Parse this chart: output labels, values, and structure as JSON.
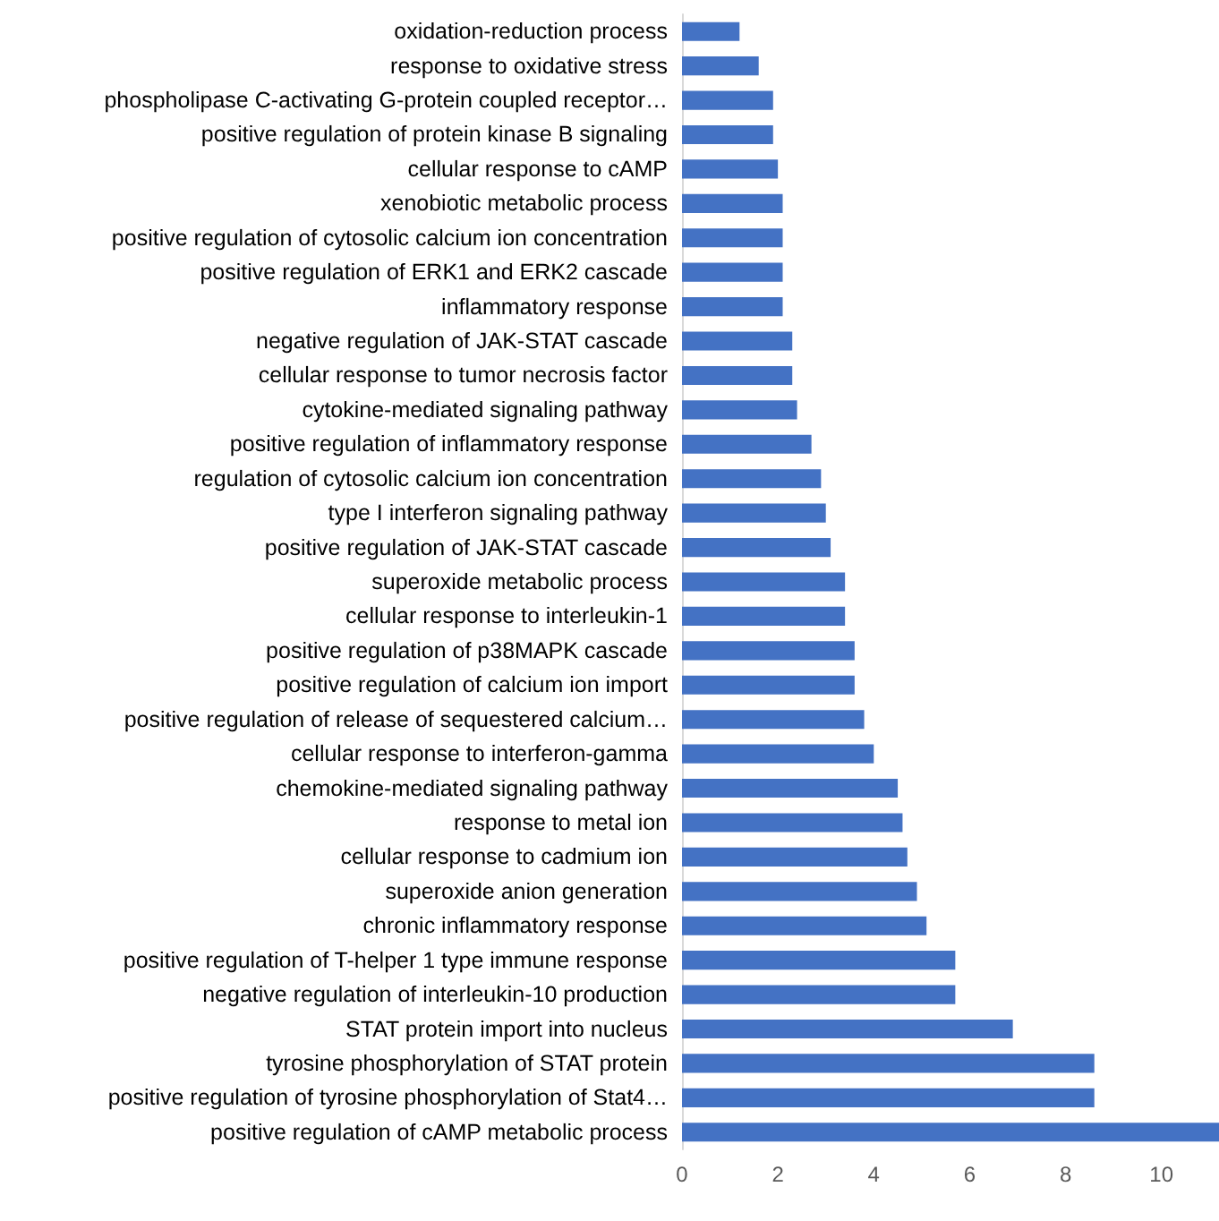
{
  "chart_data": {
    "type": "bar",
    "orientation": "horizontal",
    "color": "#4472c4",
    "categories": [
      "oxidation-reduction process",
      "response to oxidative stress",
      "phospholipase C-activating G-protein coupled receptor…",
      "positive regulation of protein kinase B signaling",
      "cellular response to cAMP",
      "xenobiotic metabolic process",
      "positive regulation of cytosolic calcium ion concentration",
      "positive regulation of ERK1 and ERK2 cascade",
      "inflammatory response",
      "negative regulation of JAK-STAT cascade",
      "cellular response to tumor necrosis factor",
      "cytokine-mediated signaling pathway",
      "positive regulation of inflammatory response",
      "regulation of cytosolic calcium ion concentration",
      "type I interferon signaling pathway",
      "positive regulation of JAK-STAT cascade",
      "superoxide metabolic process",
      "cellular response to interleukin-1",
      "positive regulation of p38MAPK cascade",
      "positive regulation of calcium ion import",
      "positive regulation of release of sequestered calcium…",
      "cellular response to interferon-gamma",
      "chemokine-mediated signaling pathway",
      "response to metal ion",
      "cellular response to cadmium ion",
      "superoxide anion generation",
      "chronic inflammatory response",
      "positive regulation of T-helper 1 type immune response",
      "negative regulation of interleukin-10 production",
      "STAT protein import into nucleus",
      "tyrosine phosphorylation of STAT protein",
      "positive regulation of tyrosine phosphorylation of Stat4…",
      "positive regulation of cAMP metabolic process"
    ],
    "values": [
      1.2,
      1.6,
      1.9,
      1.9,
      2.0,
      2.1,
      2.1,
      2.1,
      2.1,
      2.3,
      2.3,
      2.4,
      2.7,
      2.9,
      3.0,
      3.1,
      3.4,
      3.4,
      3.6,
      3.6,
      3.8,
      4.0,
      4.5,
      4.6,
      4.7,
      4.9,
      5.1,
      5.7,
      5.7,
      6.9,
      8.6,
      8.6,
      11.2
    ],
    "xlim": [
      0,
      11.2
    ],
    "xticks": [
      0,
      2,
      4,
      6,
      8,
      10
    ]
  }
}
